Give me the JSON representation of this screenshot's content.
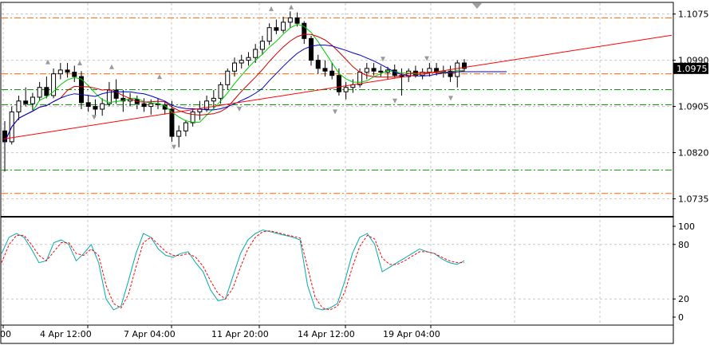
{
  "chart_data": [
    {
      "type": "candlestick",
      "title": "",
      "y_ticks": [
        "1.1075",
        "1.0990",
        "1.0905",
        "1.0820",
        "1.0735"
      ],
      "ylim": [
        1.0705,
        1.1095
      ],
      "last_price_label": "1.0975",
      "x_ticks": [
        "4 Apr 12:00",
        "7 Apr 04:00",
        "11 Apr 20:00",
        "14 Apr 12:00",
        "19 Apr 04:00"
      ],
      "grid": true,
      "candles": [
        [
          1.086,
          1.0878,
          1.0785,
          1.084
        ],
        [
          1.084,
          1.0905,
          1.0835,
          1.0895
        ],
        [
          1.0895,
          1.0925,
          1.088,
          1.0915
        ],
        [
          1.0915,
          1.094,
          1.0905,
          1.091
        ],
        [
          1.091,
          1.093,
          1.0898,
          1.0922
        ],
        [
          1.0922,
          1.095,
          1.0915,
          1.094
        ],
        [
          1.094,
          1.096,
          1.092,
          1.0925
        ],
        [
          1.0925,
          1.0975,
          1.092,
          1.0965
        ],
        [
          1.0965,
          1.0985,
          1.0955,
          1.0972
        ],
        [
          1.0972,
          1.0985,
          1.0958,
          1.0968
        ],
        [
          1.0968,
          1.098,
          1.095,
          1.096
        ],
        [
          1.096,
          1.097,
          1.09,
          1.0912
        ],
        [
          1.0912,
          1.0925,
          1.0895,
          1.0905
        ],
        [
          1.0905,
          1.0918,
          1.0885,
          1.09
        ],
        [
          1.09,
          1.092,
          1.0888,
          1.091
        ],
        [
          1.091,
          1.095,
          1.0905,
          1.0935
        ],
        [
          1.0935,
          1.0955,
          1.091,
          1.092
        ],
        [
          1.092,
          1.0935,
          1.0895,
          1.0915
        ],
        [
          1.0915,
          1.093,
          1.0905,
          1.0918
        ],
        [
          1.0918,
          1.0925,
          1.09,
          1.091
        ],
        [
          1.091,
          1.092,
          1.0895,
          1.0905
        ],
        [
          1.0905,
          1.0918,
          1.089,
          1.091
        ],
        [
          1.091,
          1.092,
          1.09,
          1.0908
        ],
        [
          1.0908,
          1.0915,
          1.089,
          1.09
        ],
        [
          1.09,
          1.0915,
          1.084,
          1.085
        ],
        [
          1.085,
          1.087,
          1.083,
          1.086
        ],
        [
          1.086,
          1.088,
          1.085,
          1.0875
        ],
        [
          1.0875,
          1.09,
          1.0868,
          1.0895
        ],
        [
          1.0895,
          1.0915,
          1.088,
          1.09
        ],
        [
          1.09,
          1.0925,
          1.0895,
          1.0915
        ],
        [
          1.0915,
          1.0935,
          1.09,
          1.092
        ],
        [
          1.092,
          1.095,
          1.091,
          1.0945
        ],
        [
          1.0945,
          1.0975,
          1.0935,
          1.097
        ],
        [
          1.097,
          1.0995,
          1.096,
          1.0985
        ],
        [
          1.0985,
          1.1,
          1.0975,
          1.099
        ],
        [
          1.099,
          1.1005,
          1.098,
          1.0995
        ],
        [
          1.0995,
          1.102,
          1.0985,
          1.101
        ],
        [
          1.101,
          1.1035,
          1.1,
          1.1025
        ],
        [
          1.1025,
          1.1058,
          1.1018,
          1.105
        ],
        [
          1.105,
          1.1065,
          1.1038,
          1.1045
        ],
        [
          1.1045,
          1.107,
          1.104,
          1.106
        ],
        [
          1.106,
          1.108,
          1.105,
          1.1068
        ],
        [
          1.1068,
          1.1078,
          1.1052,
          1.1058
        ],
        [
          1.1058,
          1.1062,
          1.102,
          1.103
        ],
        [
          1.103,
          1.1035,
          1.098,
          1.099
        ],
        [
          1.099,
          1.1,
          1.0965,
          1.0975
        ],
        [
          1.0975,
          1.099,
          1.096,
          1.097
        ],
        [
          1.097,
          1.0985,
          1.0955,
          1.0962
        ],
        [
          1.0962,
          1.0975,
          1.0925,
          1.0932
        ],
        [
          1.0932,
          1.095,
          1.0918,
          1.094
        ],
        [
          1.094,
          1.0955,
          1.093,
          1.0945
        ],
        [
          1.0945,
          1.0975,
          1.094,
          1.0968
        ],
        [
          1.0968,
          1.0985,
          1.0955,
          1.0975
        ],
        [
          1.0975,
          1.0985,
          1.0962,
          1.097
        ],
        [
          1.097,
          1.098,
          1.096,
          1.0968
        ],
        [
          1.0968,
          1.0978,
          1.0955,
          1.0972
        ],
        [
          1.0972,
          1.0982,
          1.0958,
          1.0962
        ],
        [
          1.0962,
          1.0975,
          1.0925,
          1.096
        ],
        [
          1.096,
          1.0975,
          1.095,
          1.097
        ],
        [
          1.097,
          1.098,
          1.0958,
          1.0962
        ],
        [
          1.0962,
          1.0975,
          1.0955,
          1.0968
        ],
        [
          1.0968,
          1.0985,
          1.096,
          1.0975
        ],
        [
          1.0975,
          1.0985,
          1.0962,
          1.0968
        ],
        [
          1.0968,
          1.098,
          1.0958,
          1.097
        ],
        [
          1.097,
          1.098,
          1.095,
          1.096
        ],
        [
          1.096,
          1.099,
          1.094,
          1.0985
        ],
        [
          1.0985,
          1.0992,
          1.097,
          1.0975
        ]
      ],
      "horizontal_levels": [
        {
          "value": 1.1068,
          "color": "#ff6600",
          "style": "dash-dot"
        },
        {
          "value": 1.0965,
          "color": "#ff6600",
          "style": "dash-dot"
        },
        {
          "value": 1.0936,
          "color": "#009900",
          "style": "dash-dot"
        },
        {
          "value": 1.0908,
          "color": "#009900",
          "style": "dash-dot"
        },
        {
          "value": 1.0788,
          "color": "#009900",
          "style": "dash-dot"
        },
        {
          "value": 1.0745,
          "color": "#ff6600",
          "style": "dash-dot"
        }
      ],
      "moving_average_colors": [
        "#00cc00",
        "#cc0000",
        "#0000cc"
      ],
      "trendline_color": "#ff0000"
    },
    {
      "type": "line",
      "title": "",
      "y_ticks": [
        "100",
        "80",
        "20",
        "0"
      ],
      "ylim": [
        0,
        100
      ],
      "levels": [
        80,
        20
      ],
      "series": [
        {
          "color": "#00aaaa",
          "values": [
            70,
            88,
            92,
            88,
            75,
            60,
            62,
            82,
            85,
            80,
            62,
            70,
            80,
            60,
            20,
            8,
            12,
            40,
            70,
            92,
            88,
            75,
            68,
            66,
            70,
            72,
            60,
            50,
            30,
            18,
            20,
            45,
            70,
            85,
            92,
            96,
            94,
            92,
            90,
            88,
            85,
            35,
            10,
            8,
            10,
            15,
            40,
            70,
            88,
            92,
            80,
            50,
            55,
            60,
            65,
            70,
            75,
            72,
            70,
            64,
            60,
            58,
            62
          ]
        },
        {
          "color": "#ff0000",
          "style": "dotted",
          "values": [
            60,
            80,
            90,
            90,
            80,
            68,
            62,
            72,
            82,
            82,
            70,
            68,
            75,
            68,
            35,
            15,
            10,
            25,
            55,
            82,
            88,
            80,
            72,
            68,
            68,
            70,
            66,
            56,
            40,
            26,
            20,
            32,
            55,
            75,
            88,
            94,
            95,
            93,
            91,
            89,
            87,
            55,
            22,
            10,
            8,
            12,
            28,
            55,
            78,
            90,
            86,
            65,
            58,
            58,
            62,
            67,
            72,
            72,
            70,
            66,
            62,
            60,
            60
          ]
        }
      ]
    }
  ]
}
